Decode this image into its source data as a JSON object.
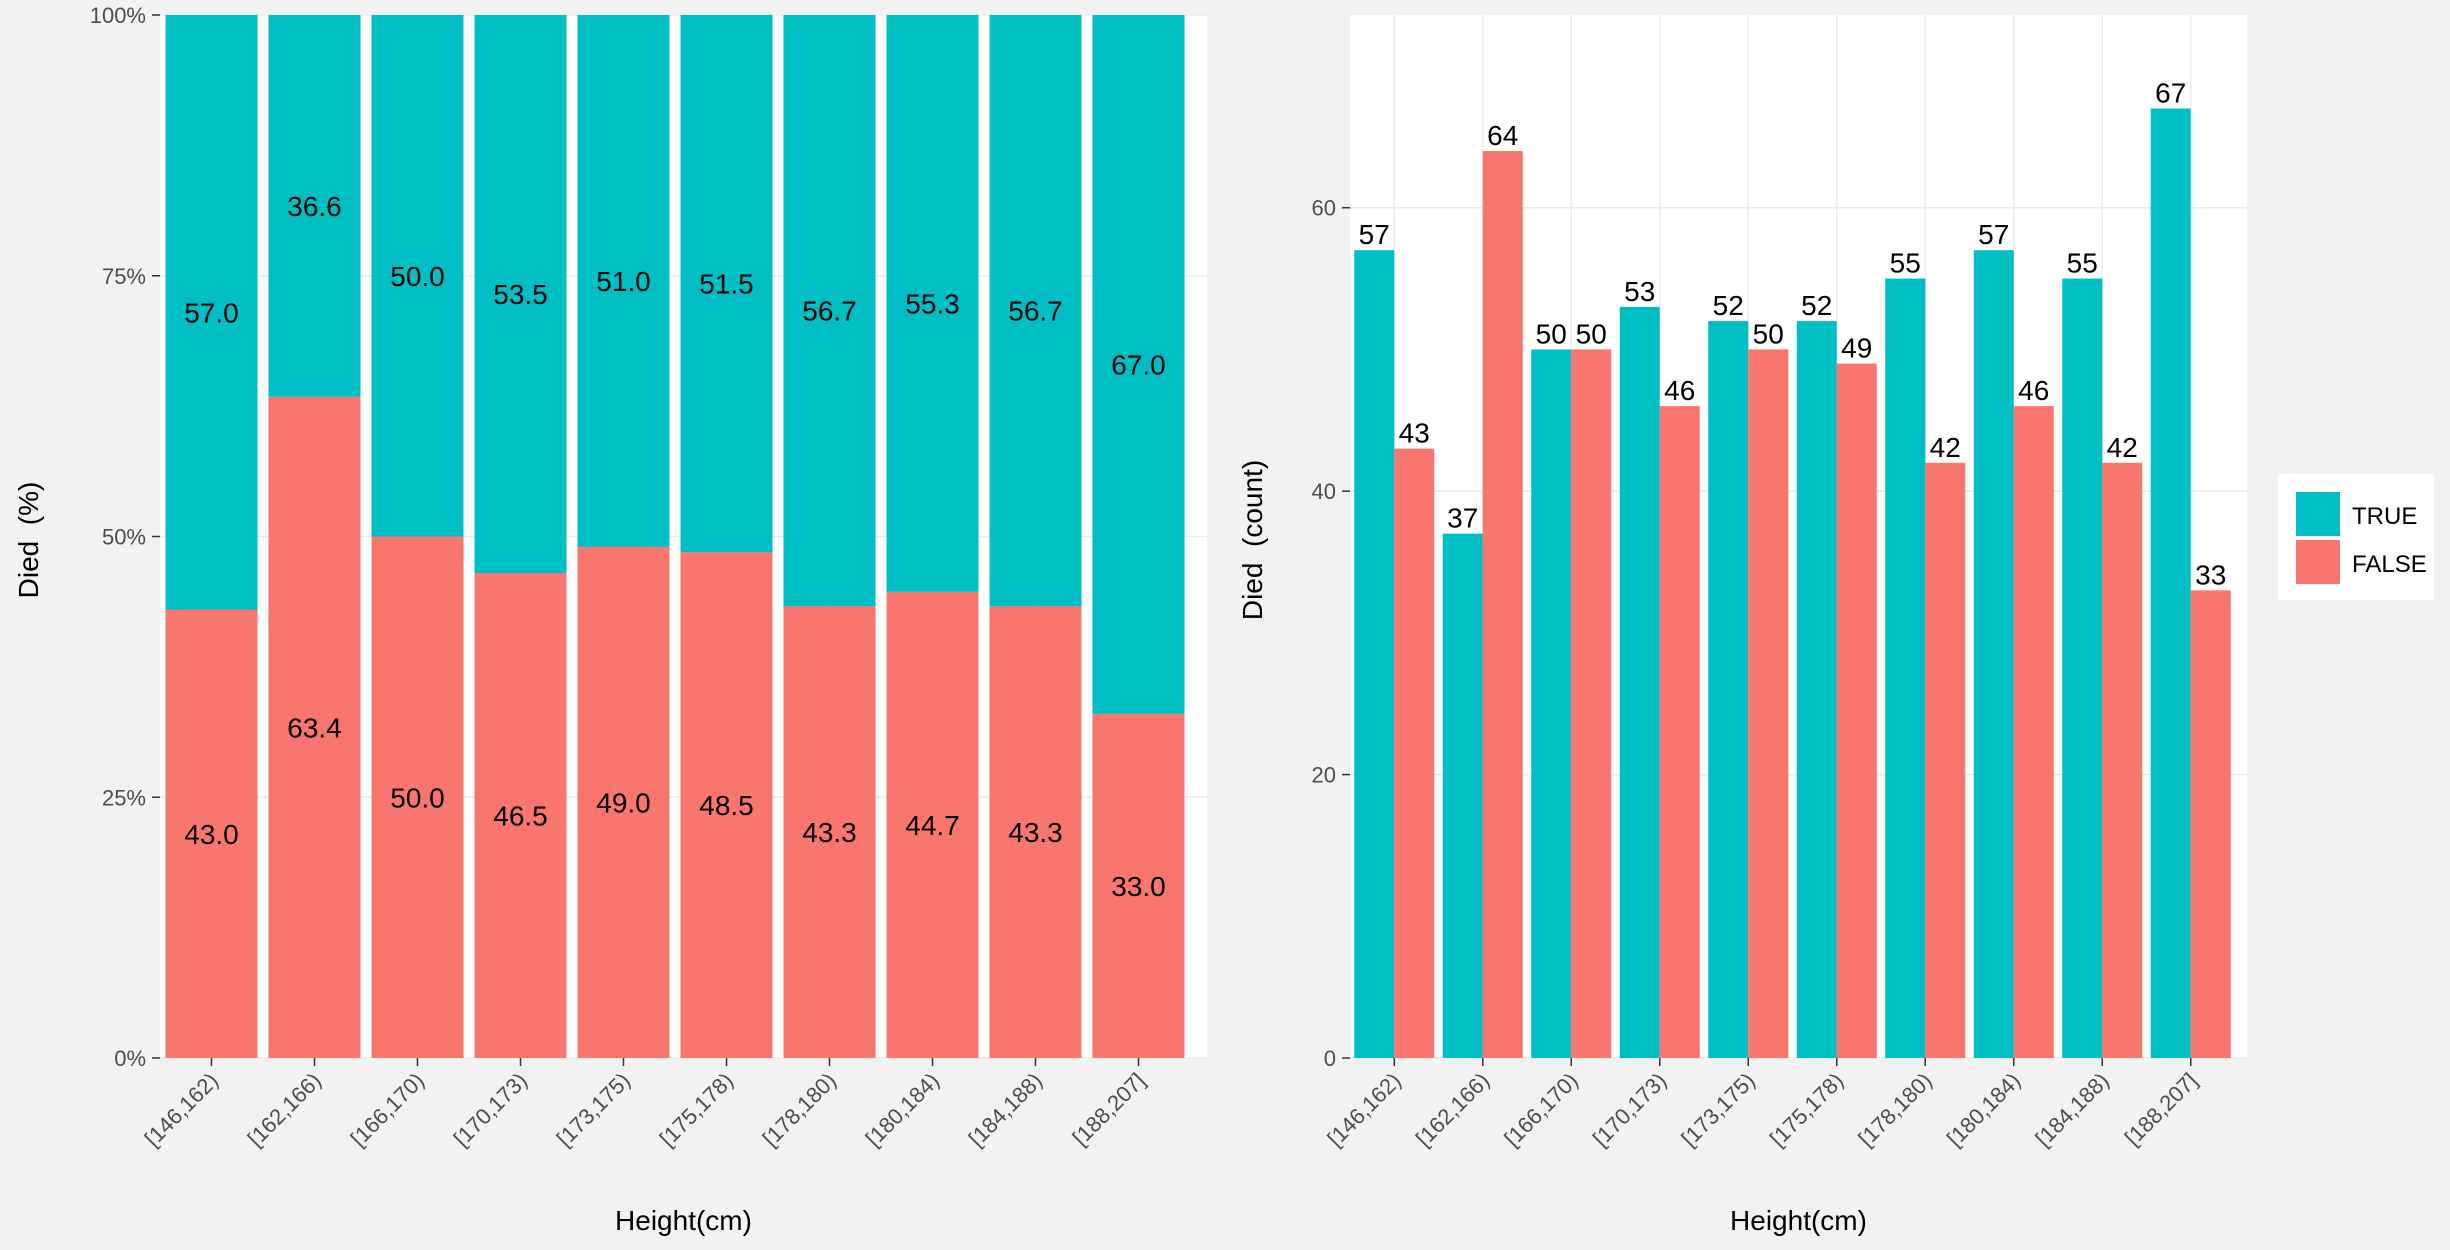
{
  "colors": {
    "true_fill": "#00BFC4",
    "false_fill": "#F8766D",
    "panel_bg": "#FFFFFF",
    "page_bg": "#F2F2F2",
    "grid": "#EBEBEB",
    "label_text": "#000000",
    "tick_text": "#4D4D4D"
  },
  "legend": {
    "items": [
      {
        "name": "TRUE",
        "color": "#00BFC4"
      },
      {
        "name": "FALSE",
        "color": "#F8766D"
      }
    ]
  },
  "chart_data": [
    {
      "type": "bar",
      "stacked": true,
      "categories": [
        "[146,162)",
        "[162,166)",
        "[166,170)",
        "[170,173)",
        "[173,175)",
        "[175,178)",
        "[178,180)",
        "[180,184)",
        "[184,188)",
        "[188,207]"
      ],
      "series": [
        {
          "name": "FALSE",
          "values": [
            43.0,
            63.4,
            50.0,
            46.5,
            49.0,
            48.5,
            43.3,
            44.7,
            43.3,
            33.0
          ],
          "labels": [
            "43.0",
            "63.4",
            "50.0",
            "46.5",
            "49.0",
            "48.5",
            "43.3",
            "44.7",
            "43.3",
            "33.0"
          ]
        },
        {
          "name": "TRUE",
          "values": [
            57.0,
            36.6,
            50.0,
            53.5,
            51.0,
            51.5,
            56.7,
            55.3,
            56.7,
            67.0
          ],
          "labels": [
            "57.0",
            "36.6",
            "50.0",
            "53.5",
            "51.0",
            "51.5",
            "56.7",
            "55.3",
            "56.7",
            "67.0"
          ]
        }
      ],
      "xlabel": "Height(cm)",
      "ylabel": "Died  (%)",
      "ylim": [
        0,
        100
      ],
      "yticks": [
        0,
        25,
        50,
        75,
        100
      ],
      "ytick_labels": [
        "0%",
        "25%",
        "50%",
        "75%",
        "100%"
      ],
      "grid": true
    },
    {
      "type": "bar",
      "grouped": true,
      "categories": [
        "[146,162)",
        "[162,166)",
        "[166,170)",
        "[170,173)",
        "[173,175)",
        "[175,178)",
        "[178,180)",
        "[180,184)",
        "[184,188)",
        "[188,207]"
      ],
      "series": [
        {
          "name": "TRUE",
          "values": [
            57,
            37,
            50,
            53,
            52,
            52,
            55,
            57,
            55,
            67
          ]
        },
        {
          "name": "FALSE",
          "values": [
            43,
            64,
            50,
            46,
            50,
            49,
            42,
            46,
            42,
            33
          ]
        }
      ],
      "xlabel": "Height(cm)",
      "ylabel": "Died  (count)",
      "ylim": [
        0,
        73.6
      ],
      "yticks": [
        0,
        20,
        40,
        60
      ],
      "ytick_labels": [
        "0",
        "20",
        "40",
        "60"
      ],
      "grid": true,
      "legend_position": "right"
    }
  ]
}
